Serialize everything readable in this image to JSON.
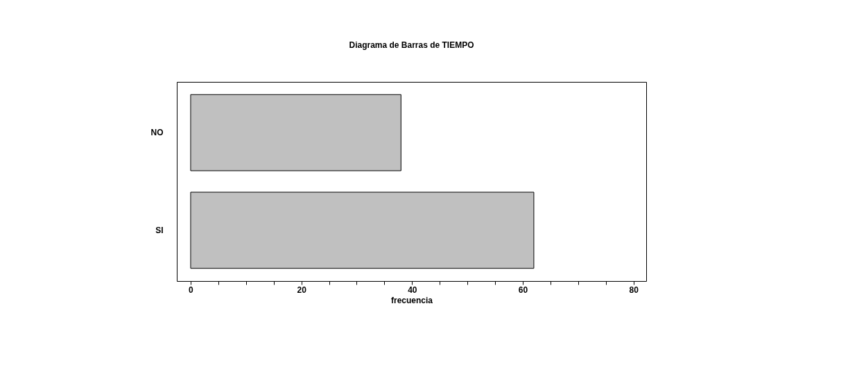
{
  "chart_data": {
    "type": "bar",
    "orientation": "horizontal",
    "title": "Diagrama de Barras de TIEMPO",
    "xlabel": "frecuencia",
    "categories": [
      "NO",
      "SI"
    ],
    "values": [
      38,
      62
    ],
    "color": "#c0c0c0",
    "xlim": [
      -2.5,
      82.3
    ],
    "xticks": [
      0,
      {
        "value": 5,
        "label": null
      },
      {
        "value": 10,
        "label": null
      },
      {
        "value": 15,
        "label": null
      },
      20,
      {
        "value": 25,
        "label": null
      },
      {
        "value": 30,
        "label": null
      },
      {
        "value": 35,
        "label": null
      },
      40,
      {
        "value": 45,
        "label": null
      },
      {
        "value": 50,
        "label": null
      },
      {
        "value": 55,
        "label": null
      },
      60,
      {
        "value": 65,
        "label": null
      },
      {
        "value": 70,
        "label": null
      },
      {
        "value": 75,
        "label": null
      },
      80
    ],
    "grid": false
  }
}
